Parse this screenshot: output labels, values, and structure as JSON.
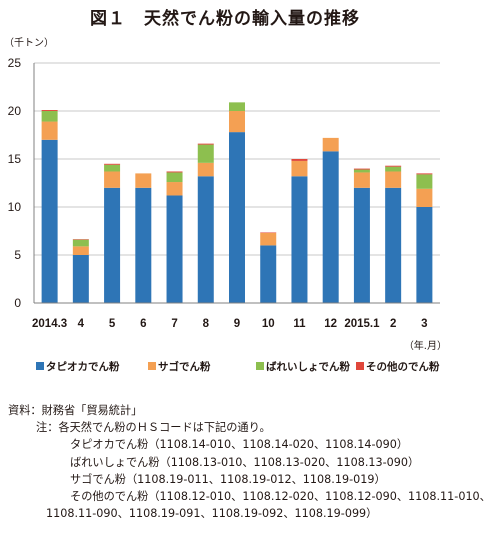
{
  "figure_title": "図１　天然でん粉の輸入量の推移",
  "figure_number": "図１",
  "figure_name": "天然でん粉の輸入量の推移",
  "colors": {
    "tapioca": "#2E75B6",
    "sago": "#F4A053",
    "potato": "#8DBF4F",
    "other": "#E0473B",
    "grid": "#C9C9C9",
    "axis": "#808080"
  },
  "chart_data": {
    "type": "bar",
    "stacked": true,
    "title": "",
    "ylabel": "（千トン）",
    "xlabel": "（年.月）",
    "ylim": [
      0,
      25
    ],
    "yticks": [
      0,
      5,
      10,
      15,
      20,
      25
    ],
    "grid": true,
    "legend_position": "bottom",
    "categories": [
      "2014.3",
      "4",
      "5",
      "6",
      "7",
      "8",
      "9",
      "10",
      "11",
      "12",
      "2015.1",
      "2",
      "3"
    ],
    "series": [
      {
        "name": "タピオカでん粉",
        "values": [
          17.0,
          5.0,
          12.0,
          12.0,
          11.2,
          13.2,
          17.8,
          6.0,
          13.2,
          15.8,
          12.0,
          12.0,
          10.0
        ]
      },
      {
        "name": "サゴでん粉",
        "values": [
          1.9,
          0.9,
          1.7,
          1.5,
          1.4,
          1.4,
          2.2,
          1.3,
          1.6,
          1.4,
          1.6,
          1.7,
          1.9
        ]
      },
      {
        "name": "ばれいしょでん粉",
        "values": [
          1.1,
          0.7,
          0.7,
          0.0,
          1.0,
          1.9,
          0.9,
          0.0,
          0.0,
          0.0,
          0.3,
          0.5,
          1.5
        ]
      },
      {
        "name": "その他のでん粉",
        "values": [
          0.1,
          0.05,
          0.1,
          0.0,
          0.1,
          0.1,
          0.0,
          0.05,
          0.2,
          0.0,
          0.1,
          0.1,
          0.1
        ]
      }
    ]
  },
  "notes": {
    "source": "資料：財務省「貿易統計」",
    "note_head": "注：各天然でん粉のＨＳコードは下記の通り。",
    "tapioca_codes": "タピオカでん粉（1108.14-010、1108.14-020、1108.14-090）",
    "potato_codes": "ばれいしょでん粉（1108.13-010、1108.13-020、1108.13-090）",
    "sago_codes": "サゴでん粉（1108.19-011、1108.19-012、1108.19-019）",
    "other_codes_1": "その他のでん粉（1108.12-010、1108.12-020、1108.12-090、1108.11-010、",
    "other_codes_2": "1108.11-090、1108.19-091、1108.19-092、1108.19-099）"
  }
}
